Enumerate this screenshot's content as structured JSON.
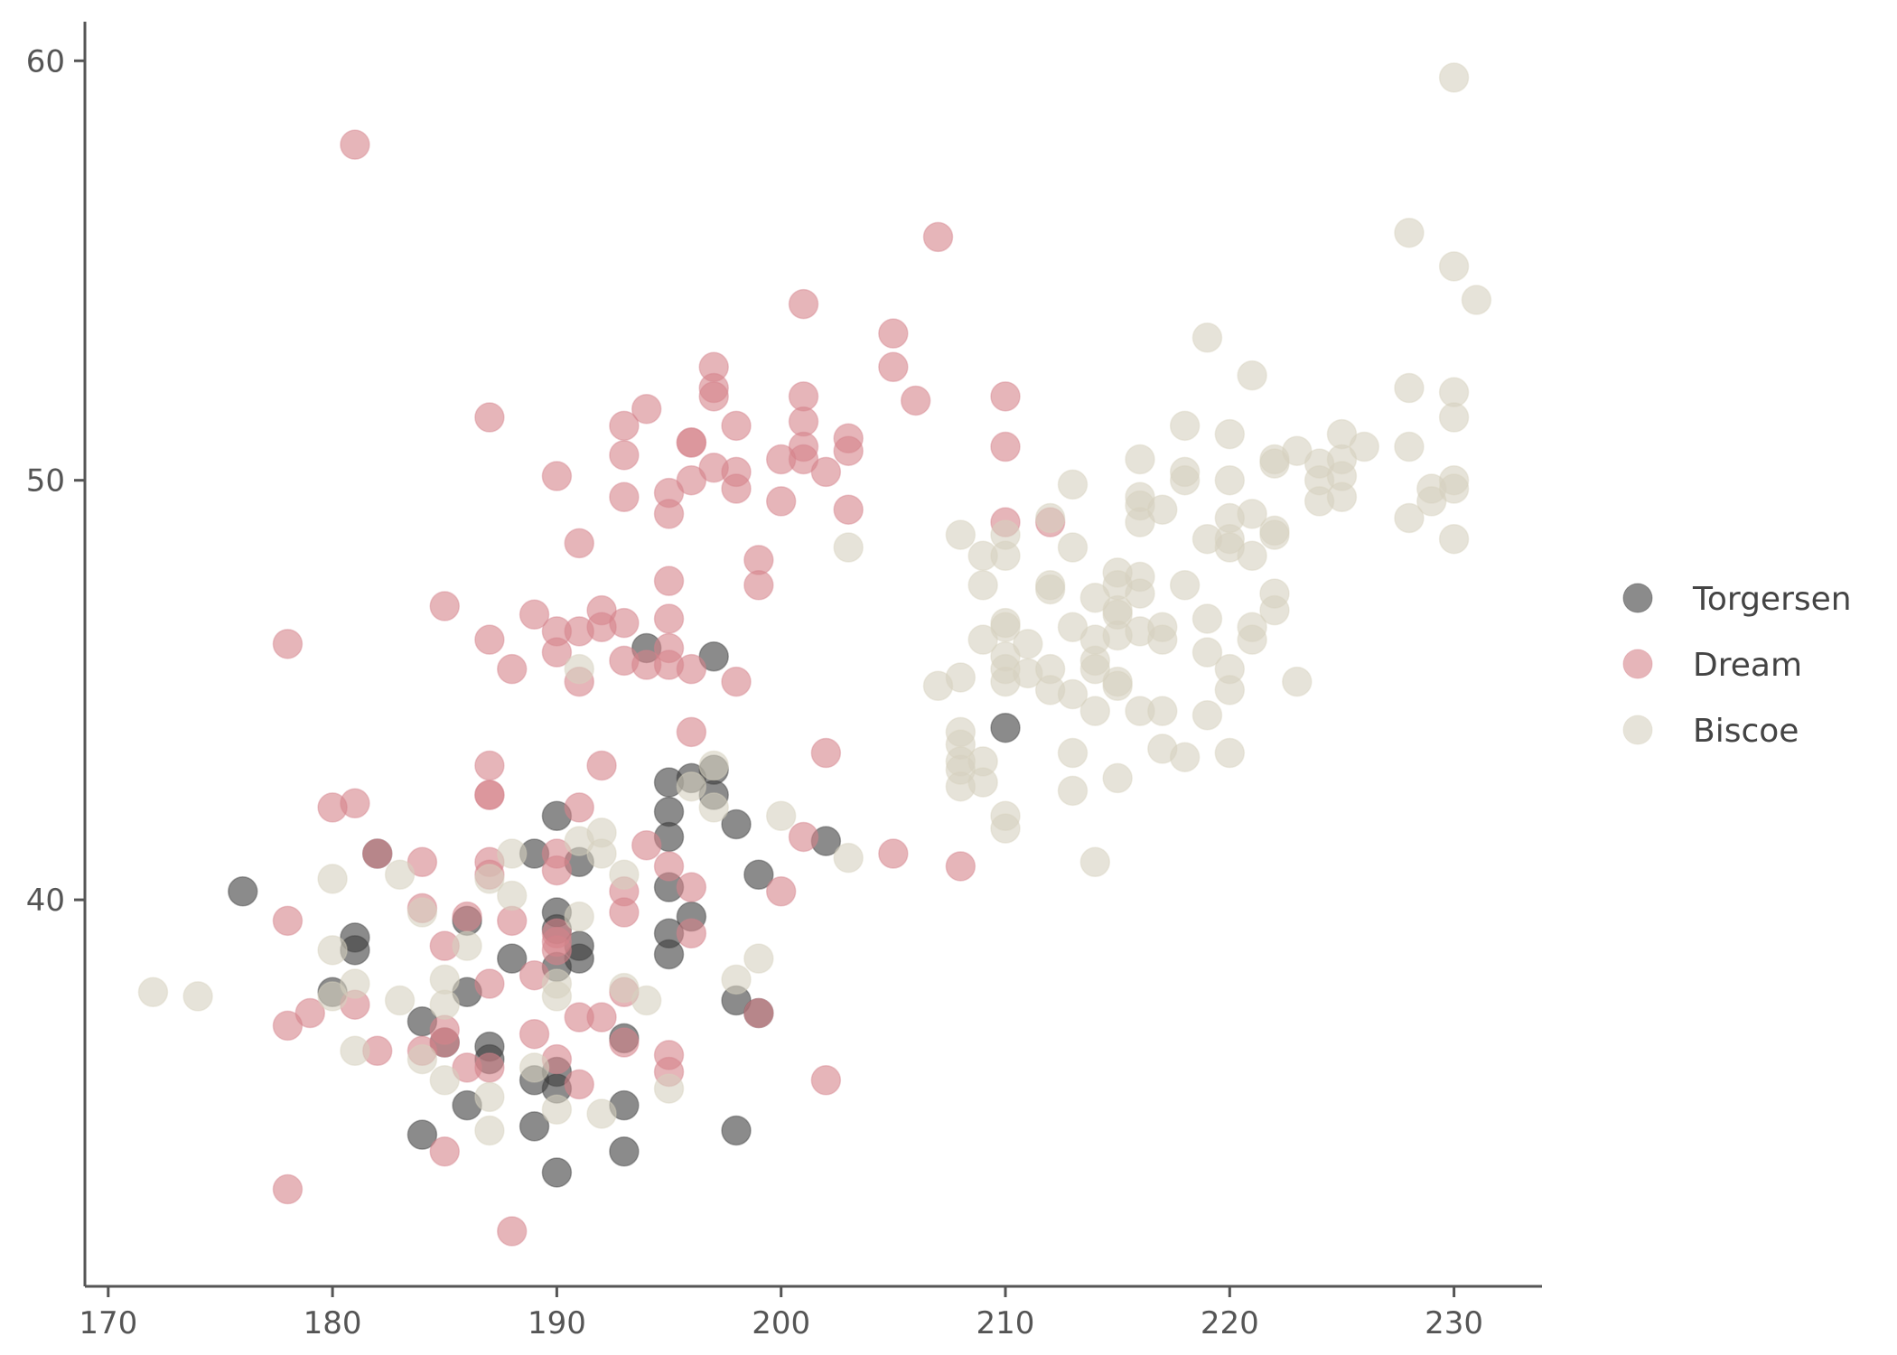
{
  "chart_data": {
    "type": "scatter",
    "title": "",
    "xlabel": "",
    "ylabel": "",
    "xlim": [
      169,
      234
    ],
    "ylim": [
      30.8,
      60.9
    ],
    "x_ticks": [
      170,
      180,
      190,
      200,
      210,
      220,
      230
    ],
    "y_ticks": [
      40,
      50,
      60
    ],
    "grid": false,
    "legend_position": "right",
    "series": [
      {
        "name": "Torgersen",
        "color": "#3d3d3d",
        "points": [
          [
            176,
            40.2
          ],
          [
            181,
            39.1
          ],
          [
            181,
            38.8
          ],
          [
            182,
            41.1
          ],
          [
            180,
            37.8
          ],
          [
            184,
            37.1
          ],
          [
            185,
            36.6
          ],
          [
            186,
            37.8
          ],
          [
            186,
            39.5
          ],
          [
            186,
            35.1
          ],
          [
            184,
            34.4
          ],
          [
            187,
            36.5
          ],
          [
            187,
            36.2
          ],
          [
            188,
            38.6
          ],
          [
            189,
            41.1
          ],
          [
            189,
            35.7
          ],
          [
            189,
            34.6
          ],
          [
            190,
            42
          ],
          [
            190,
            39.7
          ],
          [
            190,
            39.3
          ],
          [
            190,
            38.4
          ],
          [
            190,
            35.9
          ],
          [
            190,
            35.5
          ],
          [
            190,
            33.5
          ],
          [
            191,
            40.9
          ],
          [
            191,
            38.9
          ],
          [
            191,
            38.6
          ],
          [
            193,
            36.7
          ],
          [
            193,
            35.1
          ],
          [
            193,
            34
          ],
          [
            195,
            42.8
          ],
          [
            195,
            42.1
          ],
          [
            195,
            41.5
          ],
          [
            195,
            40.3
          ],
          [
            195,
            39.2
          ],
          [
            195,
            38.7
          ],
          [
            196,
            42.9
          ],
          [
            196,
            39.6
          ],
          [
            197,
            43.1
          ],
          [
            197,
            42.5
          ],
          [
            197,
            45.8
          ],
          [
            194,
            46
          ],
          [
            198,
            41.8
          ],
          [
            198,
            37.6
          ],
          [
            198,
            34.5
          ],
          [
            199,
            40.6
          ],
          [
            199,
            37.3
          ],
          [
            202,
            41.4
          ],
          [
            210,
            44.1
          ]
        ]
      },
      {
        "name": "Dream",
        "color": "#d5838b",
        "points": [
          [
            181,
            58
          ],
          [
            207,
            55.8
          ],
          [
            201,
            54.2
          ],
          [
            205,
            53.5
          ],
          [
            205,
            52.7
          ],
          [
            197,
            52.7
          ],
          [
            197,
            52.2
          ],
          [
            197,
            52
          ],
          [
            206,
            51.9
          ],
          [
            210,
            52
          ],
          [
            201,
            52
          ],
          [
            187,
            51.5
          ],
          [
            194,
            51.7
          ],
          [
            193,
            51.3
          ],
          [
            198,
            51.3
          ],
          [
            196,
            50.9
          ],
          [
            196,
            50.9
          ],
          [
            203,
            51
          ],
          [
            203,
            50.7
          ],
          [
            201,
            51.4
          ],
          [
            201,
            50.8
          ],
          [
            201,
            50.5
          ],
          [
            193,
            50.6
          ],
          [
            200,
            50.5
          ],
          [
            202,
            50.2
          ],
          [
            210,
            50.8
          ],
          [
            197,
            50.3
          ],
          [
            198,
            50.2
          ],
          [
            196,
            50
          ],
          [
            190,
            50.1
          ],
          [
            198,
            49.8
          ],
          [
            195,
            49.7
          ],
          [
            193,
            49.6
          ],
          [
            200,
            49.5
          ],
          [
            195,
            49.2
          ],
          [
            203,
            49.3
          ],
          [
            210,
            49
          ],
          [
            212,
            49
          ],
          [
            191,
            48.5
          ],
          [
            199,
            48.1
          ],
          [
            199,
            47.5
          ],
          [
            195,
            47.6
          ],
          [
            185,
            47
          ],
          [
            189,
            46.8
          ],
          [
            192,
            46.9
          ],
          [
            190,
            46.4
          ],
          [
            191,
            46.4
          ],
          [
            192,
            46.5
          ],
          [
            193,
            46.6
          ],
          [
            195,
            46.7
          ],
          [
            178,
            46.1
          ],
          [
            187,
            46.2
          ],
          [
            190,
            45.9
          ],
          [
            195,
            46
          ],
          [
            193,
            45.7
          ],
          [
            194,
            45.6
          ],
          [
            195,
            45.6
          ],
          [
            196,
            45.5
          ],
          [
            188,
            45.5
          ],
          [
            191,
            45.2
          ],
          [
            198,
            45.2
          ],
          [
            196,
            44
          ],
          [
            202,
            43.5
          ],
          [
            187,
            43.2
          ],
          [
            192,
            43.2
          ],
          [
            187,
            42.5
          ],
          [
            187,
            42.5
          ],
          [
            181,
            42.3
          ],
          [
            180,
            42.2
          ],
          [
            191,
            42.2
          ],
          [
            196,
            40.3
          ],
          [
            201,
            41.5
          ],
          [
            205,
            41.1
          ],
          [
            208,
            40.8
          ],
          [
            194,
            41.3
          ],
          [
            182,
            41.1
          ],
          [
            184,
            40.9
          ],
          [
            187,
            40.9
          ],
          [
            187,
            40.6
          ],
          [
            190,
            41.1
          ],
          [
            190,
            40.7
          ],
          [
            195,
            40.8
          ],
          [
            200,
            40.2
          ],
          [
            193,
            40.2
          ],
          [
            184,
            39.8
          ],
          [
            186,
            39.6
          ],
          [
            193,
            39.7
          ],
          [
            178,
            39.5
          ],
          [
            188,
            39.5
          ],
          [
            190,
            39.2
          ],
          [
            190,
            39
          ],
          [
            190,
            38.8
          ],
          [
            196,
            39.2
          ],
          [
            185,
            38.9
          ],
          [
            189,
            38.2
          ],
          [
            187,
            38
          ],
          [
            193,
            37.8
          ],
          [
            181,
            37.5
          ],
          [
            179,
            37.3
          ],
          [
            178,
            37
          ],
          [
            191,
            37.2
          ],
          [
            192,
            37.2
          ],
          [
            199,
            37.3
          ],
          [
            185,
            36.9
          ],
          [
            185,
            36.6
          ],
          [
            189,
            36.8
          ],
          [
            184,
            36.4
          ],
          [
            182,
            36.4
          ],
          [
            193,
            36.6
          ],
          [
            190,
            36.2
          ],
          [
            195,
            36.3
          ],
          [
            186,
            36
          ],
          [
            187,
            36
          ],
          [
            195,
            35.9
          ],
          [
            191,
            35.6
          ],
          [
            202,
            35.7
          ],
          [
            185,
            34
          ],
          [
            178,
            33.1
          ],
          [
            188,
            32.1
          ]
        ]
      },
      {
        "name": "Biscoe",
        "color": "#d6d1bf",
        "points": [
          [
            172,
            37.8
          ],
          [
            174,
            37.7
          ],
          [
            180,
            40.5
          ],
          [
            180,
            38.8
          ],
          [
            180,
            37.7
          ],
          [
            181,
            38
          ],
          [
            181,
            36.4
          ],
          [
            183,
            40.6
          ],
          [
            183,
            37.6
          ],
          [
            184,
            39.7
          ],
          [
            184,
            36.2
          ],
          [
            185,
            38.1
          ],
          [
            185,
            37.5
          ],
          [
            185,
            35.7
          ],
          [
            186,
            38.9
          ],
          [
            187,
            40.5
          ],
          [
            187,
            35.3
          ],
          [
            187,
            34.5
          ],
          [
            188,
            41.1
          ],
          [
            188,
            40.1
          ],
          [
            189,
            36
          ],
          [
            190,
            38
          ],
          [
            190,
            37.7
          ],
          [
            190,
            35
          ],
          [
            191,
            45.5
          ],
          [
            191,
            41.4
          ],
          [
            191,
            39.6
          ],
          [
            192,
            41.6
          ],
          [
            192,
            41.1
          ],
          [
            192,
            34.9
          ],
          [
            193,
            40.6
          ],
          [
            193,
            37.9
          ],
          [
            194,
            37.6
          ],
          [
            195,
            35.5
          ],
          [
            196,
            42.7
          ],
          [
            197,
            43.2
          ],
          [
            197,
            42.2
          ],
          [
            198,
            38.1
          ],
          [
            199,
            38.6
          ],
          [
            200,
            42
          ],
          [
            203,
            41
          ],
          [
            203,
            48.4
          ],
          [
            208,
            48.7
          ],
          [
            208,
            45.3
          ],
          [
            207,
            45.1
          ],
          [
            208,
            44
          ],
          [
            208,
            43.7
          ],
          [
            208,
            43.3
          ],
          [
            208,
            43.1
          ],
          [
            208,
            42.7
          ],
          [
            209,
            48.2
          ],
          [
            209,
            47.5
          ],
          [
            209,
            46.2
          ],
          [
            209,
            43.3
          ],
          [
            209,
            42.8
          ],
          [
            210,
            48.7
          ],
          [
            210,
            48.2
          ],
          [
            210,
            46.6
          ],
          [
            210,
            46.5
          ],
          [
            210,
            45.8
          ],
          [
            210,
            45.5
          ],
          [
            210,
            45.2
          ],
          [
            210,
            42
          ],
          [
            210,
            41.7
          ],
          [
            211,
            46.1
          ],
          [
            211,
            45.4
          ],
          [
            212,
            49.1
          ],
          [
            212,
            47.5
          ],
          [
            212,
            47.4
          ],
          [
            212,
            45.5
          ],
          [
            212,
            45
          ],
          [
            213,
            49.9
          ],
          [
            213,
            48.4
          ],
          [
            213,
            46.5
          ],
          [
            213,
            44.9
          ],
          [
            213,
            43.5
          ],
          [
            213,
            42.6
          ],
          [
            214,
            47.2
          ],
          [
            214,
            46.2
          ],
          [
            214,
            45.7
          ],
          [
            214,
            45.5
          ],
          [
            214,
            44.5
          ],
          [
            214,
            40.9
          ],
          [
            215,
            47.8
          ],
          [
            215,
            47.5
          ],
          [
            215,
            46.9
          ],
          [
            215,
            46.8
          ],
          [
            215,
            46.3
          ],
          [
            215,
            45.2
          ],
          [
            215,
            45.1
          ],
          [
            215,
            42.9
          ],
          [
            216,
            50.5
          ],
          [
            216,
            49.6
          ],
          [
            216,
            49.4
          ],
          [
            216,
            49
          ],
          [
            216,
            47.7
          ],
          [
            216,
            47.3
          ],
          [
            216,
            46.4
          ],
          [
            216,
            44.5
          ],
          [
            217,
            49.3
          ],
          [
            217,
            46.5
          ],
          [
            217,
            46.2
          ],
          [
            217,
            44.5
          ],
          [
            217,
            43.6
          ],
          [
            218,
            51.3
          ],
          [
            218,
            50.2
          ],
          [
            218,
            50
          ],
          [
            218,
            47.5
          ],
          [
            218,
            43.4
          ],
          [
            219,
            53.4
          ],
          [
            219,
            48.6
          ],
          [
            219,
            46.7
          ],
          [
            219,
            45.9
          ],
          [
            219,
            44.4
          ],
          [
            220,
            51.1
          ],
          [
            220,
            50
          ],
          [
            220,
            49.1
          ],
          [
            220,
            48.6
          ],
          [
            220,
            48.4
          ],
          [
            220,
            45.5
          ],
          [
            220,
            45
          ],
          [
            220,
            43.5
          ],
          [
            221,
            52.5
          ],
          [
            221,
            49.2
          ],
          [
            221,
            48.2
          ],
          [
            221,
            46.5
          ],
          [
            221,
            46.2
          ],
          [
            222,
            50.5
          ],
          [
            222,
            50.4
          ],
          [
            222,
            48.8
          ],
          [
            222,
            48.7
          ],
          [
            222,
            47.3
          ],
          [
            222,
            46.9
          ],
          [
            223,
            50.7
          ],
          [
            223,
            45.2
          ],
          [
            224,
            50.4
          ],
          [
            224,
            50
          ],
          [
            224,
            49.5
          ],
          [
            225,
            51.1
          ],
          [
            225,
            50.5
          ],
          [
            225,
            50.1
          ],
          [
            225,
            49.6
          ],
          [
            226,
            50.8
          ],
          [
            228,
            55.9
          ],
          [
            228,
            52.2
          ],
          [
            228,
            50.8
          ],
          [
            228,
            49.1
          ],
          [
            229,
            49.8
          ],
          [
            229,
            49.5
          ],
          [
            230,
            59.6
          ],
          [
            230,
            55.1
          ],
          [
            230,
            52.1
          ],
          [
            230,
            51.5
          ],
          [
            230,
            50
          ],
          [
            230,
            49.8
          ],
          [
            230,
            48.6
          ],
          [
            231,
            54.3
          ]
        ]
      }
    ]
  }
}
